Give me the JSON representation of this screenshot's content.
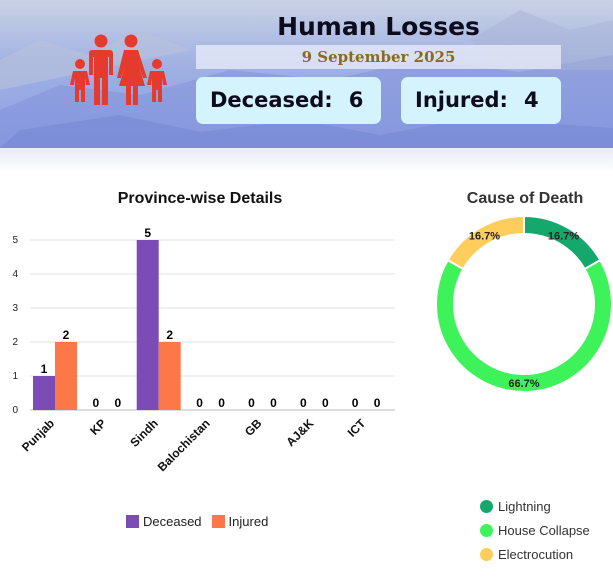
{
  "header": {
    "title": "Human Losses",
    "date": "9 September 2025",
    "deceased_label": "Deceased:",
    "deceased_value": "6",
    "injured_label": "Injured:",
    "injured_value": "4",
    "icon": "family-icon"
  },
  "colors": {
    "deceased": "#7b4cb5",
    "injured": "#fd7849",
    "lightning": "#14a86c",
    "house_collapse": "#3ef35a",
    "electrocution": "#ffcd5c",
    "family_icon": "#e53b2e",
    "stat_box": "#d5f3fd"
  },
  "chart_data": [
    {
      "type": "bar",
      "title": "Province-wise Details",
      "categories": [
        "Punjab",
        "KP",
        "Sindh",
        "Balochistan",
        "GB",
        "AJ&K",
        "ICT"
      ],
      "series": [
        {
          "name": "Deceased",
          "values": [
            1,
            0,
            5,
            0,
            0,
            0,
            0
          ]
        },
        {
          "name": "Injured",
          "values": [
            2,
            0,
            2,
            0,
            0,
            0,
            0
          ]
        }
      ],
      "ylim": [
        0,
        5
      ],
      "yticks": [
        0,
        1,
        2,
        3,
        4,
        5
      ],
      "grid": true,
      "legend": "bottom"
    },
    {
      "type": "pie",
      "title": "Cause of Death",
      "labels": [
        "Lightning",
        "House Collapse",
        "Electrocution"
      ],
      "values": [
        16.7,
        66.7,
        16.7
      ],
      "value_labels": [
        "16.7%",
        "66.7%",
        "16.7%"
      ],
      "donut": true,
      "legend": "bottom"
    }
  ]
}
